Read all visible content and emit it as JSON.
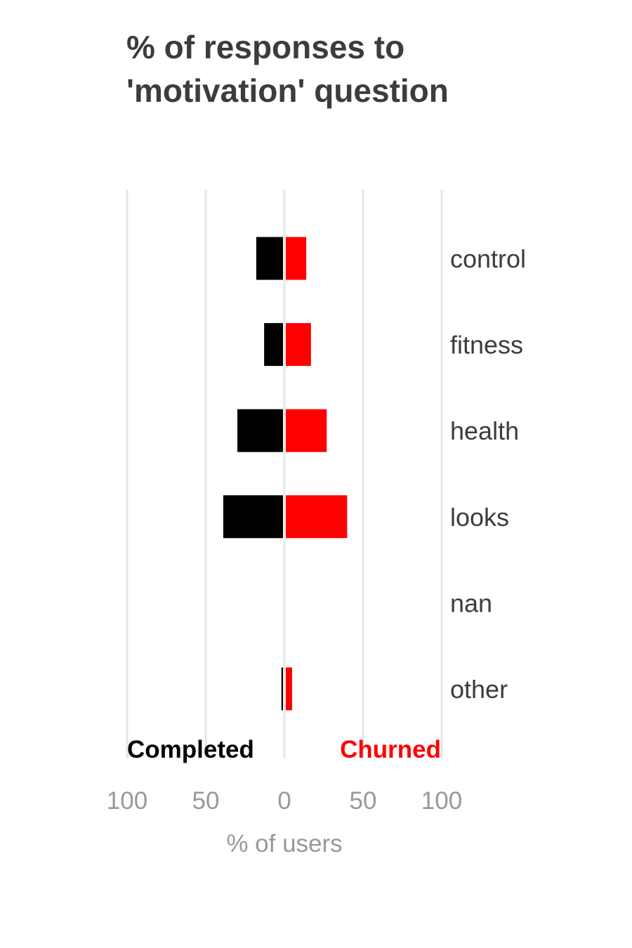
{
  "chart_data": {
    "type": "bar",
    "title_lines": [
      "% of responses to",
      "'motivation' question"
    ],
    "categories": [
      "control",
      "fitness",
      "health",
      "looks",
      "nan",
      "other"
    ],
    "series": [
      {
        "name": "Completed",
        "values": [
          17,
          12,
          29,
          38,
          0,
          1
        ]
      },
      {
        "name": "Churned",
        "values": [
          13,
          16,
          26,
          39,
          0,
          4
        ]
      }
    ],
    "xlabel": "% of users",
    "x_ticks": [
      100,
      50,
      0,
      50,
      100
    ],
    "xlim": [
      -100,
      100
    ],
    "legend_placement": "bottom",
    "grid": true,
    "colors": {
      "Completed": "#000000",
      "Churned": "#ff0000",
      "grid": "#e6e6e6",
      "title": "#3c3c3c",
      "category_label": "#3c3c3c",
      "axis_text": "#999999"
    }
  }
}
